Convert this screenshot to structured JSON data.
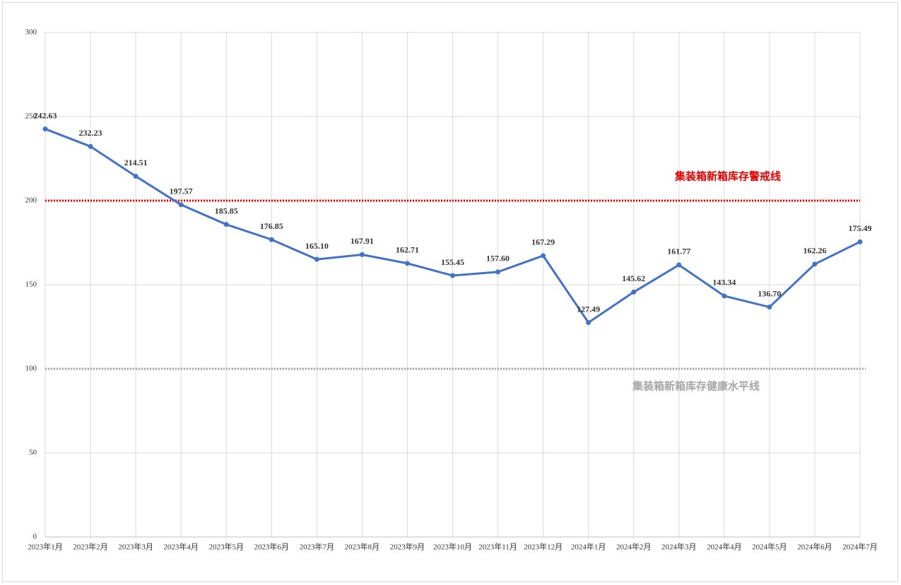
{
  "chart_data": {
    "type": "line",
    "categories": [
      "2023年1月",
      "2023年2月",
      "2023年3月",
      "2023年4月",
      "2023年5月",
      "2023年6月",
      "2023年7月",
      "2023年8月",
      "2023年9月",
      "2023年10月",
      "2023年11月",
      "2023年12月",
      "2024年1月",
      "2024年2月",
      "2024年3月",
      "2024年4月",
      "2024年5月",
      "2024年6月",
      "2024年7月"
    ],
    "series": [
      {
        "color": "#4472c4",
        "values": [
          242.63,
          232.23,
          214.51,
          197.57,
          185.85,
          176.85,
          165.1,
          167.91,
          162.71,
          155.45,
          157.6,
          167.29,
          127.49,
          145.62,
          161.77,
          143.34,
          136.7,
          162.26,
          175.49
        ],
        "value_labels": [
          "242.63",
          "232.23",
          "214.51",
          "197.57",
          "185.85",
          "176.85",
          "165.10",
          "167.91",
          "162.71",
          "155.45",
          "157.60",
          "167.29",
          "127.49",
          "145.62",
          "161.77",
          "143.34",
          "136.70",
          "162.26",
          "175.49"
        ]
      }
    ],
    "ylim": [
      0,
      300
    ],
    "yticks": [
      0,
      50,
      100,
      150,
      200,
      250,
      300
    ],
    "grid": true,
    "reference_lines": [
      {
        "value": 200,
        "label": "集装箱新箱库存警戒线",
        "color": "#e00000"
      },
      {
        "value": 100,
        "label": "集装箱新箱库存健康水平线",
        "color": "#a6a6a6"
      }
    ]
  }
}
